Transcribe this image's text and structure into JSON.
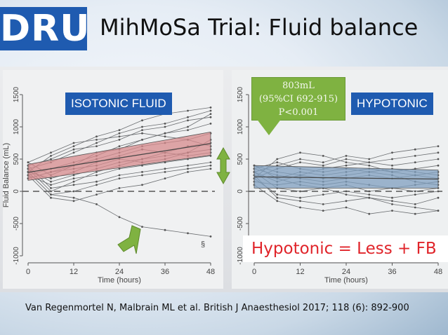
{
  "header": {
    "brand": "DRUG",
    "title": "MihMoSa Trial: Fluid balance"
  },
  "panels": {
    "left_label": "ISOTONIC FLUID",
    "right_label": "HYPOTONIC",
    "callout": [
      "803mL",
      "(95%CI 692-915)",
      "P<0.001"
    ],
    "conclusion": "Hypotonic = Less + FB",
    "annotation_symbol": "§"
  },
  "chart_data": [
    {
      "type": "line",
      "name": "isotonic",
      "xlabel": "Time (hours)",
      "ylabel": "Fluid Balance (mL)",
      "x_ticks": [
        "0",
        "12",
        "24",
        "36",
        "48"
      ],
      "y_ticks": [
        "1500",
        "1000",
        "500",
        "0",
        "-500",
        "-1000"
      ],
      "xlim": [
        0,
        48
      ],
      "ylim": [
        -1000,
        1500
      ],
      "band_color": "#d78a8c",
      "band_lower": [
        [
          0,
          170
        ],
        [
          48,
          560
        ]
      ],
      "band_upper": [
        [
          0,
          420
        ],
        [
          48,
          920
        ]
      ],
      "mean": [
        [
          0,
          295
        ],
        [
          48,
          740
        ]
      ],
      "patients": [
        [
          [
            0,
            300
          ],
          [
            6,
            550
          ],
          [
            12,
            700
          ],
          [
            18,
            850
          ],
          [
            24,
            950
          ],
          [
            30,
            1100
          ],
          [
            36,
            1200
          ],
          [
            42,
            1250
          ],
          [
            48,
            1300
          ]
        ],
        [
          [
            0,
            350
          ],
          [
            6,
            450
          ],
          [
            12,
            600
          ],
          [
            18,
            750
          ],
          [
            24,
            900
          ],
          [
            30,
            1000
          ],
          [
            36,
            1050
          ],
          [
            42,
            1150
          ],
          [
            48,
            1250
          ]
        ],
        [
          [
            0,
            400
          ],
          [
            6,
            500
          ],
          [
            12,
            650
          ],
          [
            18,
            700
          ],
          [
            24,
            800
          ],
          [
            30,
            950
          ],
          [
            36,
            1000
          ],
          [
            42,
            1100
          ],
          [
            48,
            1150
          ]
        ],
        [
          [
            0,
            250
          ],
          [
            6,
            350
          ],
          [
            12,
            450
          ],
          [
            18,
            550
          ],
          [
            24,
            700
          ],
          [
            30,
            800
          ],
          [
            36,
            900
          ],
          [
            42,
            950
          ],
          [
            48,
            1050
          ]
        ],
        [
          [
            0,
            200
          ],
          [
            6,
            300
          ],
          [
            12,
            400
          ],
          [
            18,
            500
          ],
          [
            24,
            600
          ],
          [
            30,
            700
          ],
          [
            36,
            750
          ],
          [
            42,
            800
          ],
          [
            48,
            900
          ]
        ],
        [
          [
            0,
            450
          ],
          [
            6,
            600
          ],
          [
            12,
            750
          ],
          [
            18,
            800
          ],
          [
            24,
            850
          ],
          [
            30,
            900
          ],
          [
            36,
            850
          ],
          [
            42,
            800
          ],
          [
            48,
            700
          ]
        ],
        [
          [
            0,
            300
          ],
          [
            6,
            200
          ],
          [
            12,
            300
          ],
          [
            18,
            450
          ],
          [
            24,
            550
          ],
          [
            30,
            650
          ],
          [
            36,
            600
          ],
          [
            42,
            550
          ],
          [
            48,
            600
          ]
        ],
        [
          [
            0,
            350
          ],
          [
            6,
            150
          ],
          [
            12,
            250
          ],
          [
            18,
            350
          ],
          [
            24,
            450
          ],
          [
            30,
            500
          ],
          [
            36,
            550
          ],
          [
            42,
            600
          ],
          [
            48,
            650
          ]
        ],
        [
          [
            0,
            250
          ],
          [
            6,
            100
          ],
          [
            12,
            200
          ],
          [
            18,
            250
          ],
          [
            24,
            350
          ],
          [
            30,
            400
          ],
          [
            36,
            450
          ],
          [
            42,
            500
          ],
          [
            48,
            550
          ]
        ],
        [
          [
            0,
            400
          ],
          [
            6,
            50
          ],
          [
            12,
            100
          ],
          [
            18,
            150
          ],
          [
            24,
            250
          ],
          [
            30,
            300
          ],
          [
            36,
            350
          ],
          [
            42,
            400
          ],
          [
            48,
            450
          ]
        ],
        [
          [
            0,
            300
          ],
          [
            6,
            -50
          ],
          [
            12,
            0
          ],
          [
            18,
            100
          ],
          [
            24,
            200
          ],
          [
            30,
            250
          ],
          [
            36,
            300
          ],
          [
            42,
            350
          ],
          [
            48,
            400
          ]
        ],
        [
          [
            0,
            250
          ],
          [
            6,
            -100
          ],
          [
            12,
            -150
          ],
          [
            18,
            -50
          ],
          [
            24,
            50
          ],
          [
            30,
            100
          ],
          [
            36,
            200
          ],
          [
            42,
            300
          ],
          [
            48,
            350
          ]
        ],
        [
          [
            0,
            350
          ],
          [
            6,
            0
          ],
          [
            12,
            150
          ],
          [
            18,
            300
          ],
          [
            24,
            400
          ],
          [
            30,
            500
          ],
          [
            36,
            600
          ],
          [
            42,
            700
          ],
          [
            48,
            750
          ]
        ],
        [
          [
            0,
            300
          ],
          [
            6,
            -50
          ],
          [
            12,
            -100
          ],
          [
            18,
            -200
          ],
          [
            24,
            -400
          ],
          [
            30,
            -550
          ],
          [
            36,
            -600
          ],
          [
            42,
            -650
          ],
          [
            48,
            -700
          ]
        ],
        [
          [
            0,
            450
          ],
          [
            6,
            250
          ],
          [
            12,
            400
          ],
          [
            18,
            600
          ],
          [
            24,
            650
          ],
          [
            30,
            800
          ],
          [
            36,
            900
          ],
          [
            42,
            1000
          ],
          [
            48,
            1200
          ]
        ],
        [
          [
            0,
            200
          ],
          [
            6,
            300
          ],
          [
            12,
            350
          ],
          [
            18,
            400
          ],
          [
            24,
            500
          ],
          [
            30,
            450
          ],
          [
            36,
            500
          ],
          [
            42,
            600
          ],
          [
            48,
            800
          ]
        ]
      ]
    },
    {
      "type": "line",
      "name": "hypotonic",
      "xlabel": "Time (hours)",
      "ylabel": "",
      "x_ticks": [
        "0",
        "12",
        "24",
        "36",
        "48"
      ],
      "y_ticks": [
        "1500",
        "1000",
        "500",
        "0",
        "-500",
        "-1000"
      ],
      "xlim": [
        0,
        48
      ],
      "ylim": [
        -1000,
        1500
      ],
      "band_color": "#7f9fbf",
      "band_lower": [
        [
          0,
          50
        ],
        [
          48,
          50
        ]
      ],
      "band_upper": [
        [
          0,
          400
        ],
        [
          48,
          330
        ]
      ],
      "mean": [
        [
          0,
          225
        ],
        [
          48,
          190
        ]
      ],
      "patients": [
        [
          [
            0,
            300
          ],
          [
            6,
            400
          ],
          [
            12,
            500
          ],
          [
            18,
            450
          ],
          [
            24,
            550
          ],
          [
            30,
            500
          ],
          [
            36,
            600
          ],
          [
            42,
            650
          ],
          [
            48,
            700
          ]
        ],
        [
          [
            0,
            200
          ],
          [
            6,
            350
          ],
          [
            12,
            450
          ],
          [
            18,
            400
          ],
          [
            24,
            500
          ],
          [
            30,
            450
          ],
          [
            36,
            500
          ],
          [
            42,
            550
          ],
          [
            48,
            600
          ]
        ],
        [
          [
            0,
            400
          ],
          [
            6,
            300
          ],
          [
            12,
            250
          ],
          [
            18,
            350
          ],
          [
            24,
            400
          ],
          [
            30,
            450
          ],
          [
            36,
            400
          ],
          [
            42,
            450
          ],
          [
            48,
            500
          ]
        ],
        [
          [
            0,
            250
          ],
          [
            6,
            200
          ],
          [
            12,
            300
          ],
          [
            18,
            250
          ],
          [
            24,
            300
          ],
          [
            30,
            350
          ],
          [
            36,
            300
          ],
          [
            42,
            350
          ],
          [
            48,
            400
          ]
        ],
        [
          [
            0,
            350
          ],
          [
            6,
            250
          ],
          [
            12,
            200
          ],
          [
            18,
            150
          ],
          [
            24,
            200
          ],
          [
            30,
            250
          ],
          [
            36,
            200
          ],
          [
            42,
            250
          ],
          [
            48,
            300
          ]
        ],
        [
          [
            0,
            150
          ],
          [
            6,
            100
          ],
          [
            12,
            150
          ],
          [
            18,
            100
          ],
          [
            24,
            150
          ],
          [
            30,
            100
          ],
          [
            36,
            50
          ],
          [
            42,
            100
          ],
          [
            48,
            150
          ]
        ],
        [
          [
            0,
            300
          ],
          [
            6,
            50
          ],
          [
            12,
            0
          ],
          [
            18,
            50
          ],
          [
            24,
            100
          ],
          [
            30,
            0
          ],
          [
            36,
            50
          ],
          [
            42,
            0
          ],
          [
            48,
            50
          ]
        ],
        [
          [
            0,
            200
          ],
          [
            6,
            -50
          ],
          [
            12,
            -100
          ],
          [
            18,
            -50
          ],
          [
            24,
            0
          ],
          [
            30,
            -50
          ],
          [
            36,
            -100
          ],
          [
            42,
            -50
          ],
          [
            48,
            0
          ]
        ],
        [
          [
            0,
            250
          ],
          [
            6,
            -100
          ],
          [
            12,
            -150
          ],
          [
            18,
            -200
          ],
          [
            24,
            -150
          ],
          [
            30,
            -100
          ],
          [
            36,
            -150
          ],
          [
            42,
            -200
          ],
          [
            48,
            -100
          ]
        ],
        [
          [
            0,
            400
          ],
          [
            6,
            200
          ],
          [
            12,
            100
          ],
          [
            18,
            50
          ],
          [
            24,
            -50
          ],
          [
            30,
            -100
          ],
          [
            36,
            -200
          ],
          [
            42,
            -250
          ],
          [
            48,
            -300
          ]
        ],
        [
          [
            0,
            100
          ],
          [
            6,
            -150
          ],
          [
            12,
            -250
          ],
          [
            18,
            -300
          ],
          [
            24,
            -250
          ],
          [
            30,
            -350
          ],
          [
            36,
            -300
          ],
          [
            42,
            -350
          ],
          [
            48,
            -300
          ]
        ],
        [
          [
            0,
            300
          ],
          [
            6,
            150
          ],
          [
            12,
            250
          ],
          [
            18,
            200
          ],
          [
            24,
            250
          ],
          [
            30,
            300
          ],
          [
            36,
            250
          ],
          [
            42,
            150
          ],
          [
            48,
            100
          ]
        ],
        [
          [
            0,
            200
          ],
          [
            6,
            500
          ],
          [
            12,
            600
          ],
          [
            18,
            550
          ],
          [
            24,
            450
          ],
          [
            30,
            400
          ],
          [
            36,
            300
          ],
          [
            42,
            250
          ],
          [
            48,
            200
          ]
        ],
        [
          [
            0,
            350
          ],
          [
            6,
            450
          ],
          [
            12,
            350
          ],
          [
            18,
            300
          ],
          [
            24,
            350
          ],
          [
            30,
            300
          ],
          [
            36,
            350
          ],
          [
            42,
            300
          ],
          [
            48,
            250
          ]
        ]
      ]
    }
  ],
  "footer": {
    "reference": "Van Regenmortel N, Malbrain ML et al. British J Anaesthesiol 2017; 118 (6): 892-900"
  }
}
